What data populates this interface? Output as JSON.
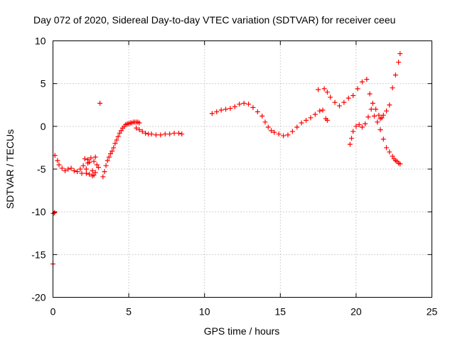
{
  "chart_data": {
    "type": "scatter",
    "title": "Day 072 of 2020, Sidereal Day-to-day VTEC variation (SDTVAR) for receiver ceeu",
    "xlabel": "GPS time / hours",
    "ylabel": "SDTVAR / TECUs",
    "xlim": [
      0,
      25
    ],
    "ylim": [
      -20,
      10
    ],
    "xticks": [
      0,
      5,
      10,
      15,
      20,
      25
    ],
    "yticks": [
      -20,
      -15,
      -10,
      -5,
      0,
      5,
      10
    ],
    "grid": true,
    "marker": "plus",
    "series": [
      {
        "name": "SDTVAR",
        "color": "#ff0000",
        "x": [
          0.0,
          0.02,
          0.1,
          0.13,
          0.3,
          0.4,
          0.6,
          0.8,
          1.0,
          1.2,
          1.4,
          1.6,
          1.8,
          2.0,
          2.1,
          2.2,
          2.3,
          2.4,
          2.5,
          2.6,
          2.7,
          2.8,
          2.9,
          3.0,
          2.2,
          2.4,
          2.6,
          2.8,
          1.9,
          2.3,
          2.7,
          3.1,
          3.3,
          3.4,
          3.5,
          3.6,
          3.7,
          3.8,
          3.9,
          4.0,
          4.1,
          4.2,
          4.3,
          4.4,
          4.5,
          4.6,
          4.7,
          4.8,
          4.9,
          5.0,
          5.1,
          5.2,
          5.3,
          5.4,
          5.5,
          5.6,
          5.7,
          5.5,
          5.7,
          5.9,
          6.1,
          6.3,
          6.5,
          6.8,
          7.1,
          7.4,
          7.7,
          8.0,
          8.3,
          8.5,
          10.5,
          10.8,
          11.1,
          11.4,
          11.7,
          12.0,
          12.3,
          12.6,
          12.9,
          13.2,
          13.5,
          13.8,
          14.0,
          14.2,
          14.4,
          14.6,
          14.9,
          15.2,
          15.5,
          15.8,
          16.1,
          16.4,
          16.7,
          17.0,
          17.3,
          17.6,
          17.8,
          17.5,
          17.9,
          18.1,
          18.3,
          18.6,
          18.9,
          19.2,
          19.5,
          19.8,
          20.1,
          20.4,
          20.7,
          20.9,
          21.1,
          21.3,
          21.5,
          21.6,
          21.7,
          21.8,
          22.0,
          22.2,
          22.4,
          22.6,
          22.8,
          22.9,
          19.6,
          19.7,
          19.8,
          20.0,
          20.2,
          20.4,
          20.6,
          20.8,
          21.0,
          21.2,
          21.4,
          21.6,
          21.8,
          22.0,
          22.2,
          22.4,
          22.5,
          22.6,
          22.7,
          22.8,
          22.9,
          18.0,
          18.1
        ],
        "y": [
          -16.1,
          -10.2,
          -10.1,
          -3.4,
          -4.0,
          -4.5,
          -4.9,
          -5.2,
          -5.0,
          -4.9,
          -5.2,
          -5.3,
          -5.0,
          -4.6,
          -3.8,
          -5.5,
          -4.3,
          -5.6,
          -3.7,
          -5.2,
          -4.1,
          -5.4,
          -4.5,
          -4.8,
          -5.0,
          -4.2,
          -5.8,
          -3.6,
          -5.5,
          -3.9,
          -5.7,
          2.7,
          -5.9,
          -5.3,
          -4.6,
          -4.0,
          -3.6,
          -3.2,
          -2.9,
          -2.5,
          -2.0,
          -1.6,
          -1.2,
          -0.8,
          -0.5,
          -0.2,
          0.0,
          0.2,
          0.3,
          0.3,
          0.4,
          0.4,
          0.5,
          0.5,
          0.5,
          0.5,
          0.4,
          -0.2,
          -0.4,
          -0.6,
          -0.8,
          -0.9,
          -0.9,
          -1.0,
          -1.0,
          -0.9,
          -0.9,
          -0.8,
          -0.8,
          -0.9,
          1.5,
          1.7,
          1.9,
          2.0,
          2.1,
          2.3,
          2.6,
          2.7,
          2.6,
          2.2,
          1.7,
          1.2,
          0.5,
          -0.1,
          -0.5,
          -0.7,
          -0.9,
          -1.1,
          -1.0,
          -0.6,
          -0.1,
          0.4,
          0.7,
          1.0,
          1.4,
          1.8,
          1.9,
          4.3,
          4.4,
          4.0,
          3.4,
          2.8,
          2.4,
          2.8,
          3.3,
          3.6,
          4.4,
          5.2,
          5.5,
          3.8,
          2.7,
          2.0,
          1.3,
          0.9,
          1.0,
          1.3,
          1.8,
          2.5,
          4.5,
          6.0,
          7.5,
          8.5,
          -2.1,
          -1.4,
          -0.6,
          0.0,
          0.2,
          -0.1,
          0.3,
          1.1,
          2.0,
          1.2,
          0.5,
          -0.4,
          -1.5,
          -2.5,
          -3.0,
          -3.5,
          -3.8,
          -4.0,
          -4.1,
          -4.3,
          -4.4,
          0.9,
          0.7
        ]
      }
    ]
  }
}
